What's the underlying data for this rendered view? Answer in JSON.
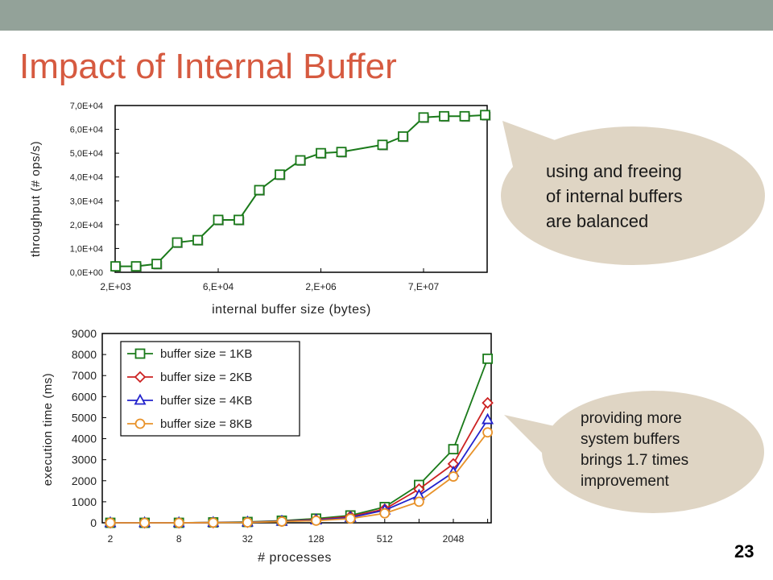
{
  "slide": {
    "title": "Impact of Internal Buffer",
    "page_number": "23",
    "colors": {
      "topbar": "#93a299",
      "title": "#d65a40",
      "bubble": "#dfd5c4"
    }
  },
  "callouts": {
    "top": [
      "using and freeing",
      "of internal buffers",
      "are balanced"
    ],
    "bottom": [
      "providing more",
      "system buffers",
      "brings 1.7 times",
      "improvement"
    ]
  },
  "chart_data": [
    {
      "type": "line",
      "xlabel": "internal buffer size (bytes)",
      "ylabel": "throughput (# ops/s)",
      "x_tick_labels": [
        "2,E+03",
        "6,E+04",
        "2,E+06",
        "7,E+07"
      ],
      "y_tick_labels": [
        "0,0E+00",
        "1,0E+04",
        "2,0E+04",
        "3,0E+04",
        "4,0E+04",
        "5,0E+04",
        "6,0E+04",
        "7,0E+04"
      ],
      "x_scale": "log2",
      "x": [
        2048,
        4096,
        8192,
        16384,
        32768,
        65536,
        131072,
        262144,
        524288,
        1048576,
        2097152,
        4194304,
        8388608,
        16777216,
        33554432,
        67108864,
        134217728,
        268435456,
        536870912
      ],
      "ylim": [
        0,
        70000
      ],
      "grid": false,
      "legend": "none",
      "series": [
        {
          "color": "#1a7a1a",
          "marker": "square",
          "values": [
            2500,
            2500,
            3500,
            12500,
            13500,
            22000,
            22000,
            34500,
            41000,
            47000,
            50000,
            50500,
            null,
            53500,
            57000,
            65000,
            65500,
            65500,
            66000
          ]
        }
      ]
    },
    {
      "type": "line",
      "xlabel": "# processes",
      "ylabel": "execution time (ms)",
      "x_tick_labels": [
        "2",
        "8",
        "32",
        "128",
        "512",
        "2048"
      ],
      "x_scale": "log2",
      "x": [
        2,
        4,
        8,
        16,
        32,
        64,
        128,
        256,
        512,
        1024,
        2048,
        4096
      ],
      "ylim": [
        0,
        9000
      ],
      "yticks": [
        0,
        1000,
        2000,
        3000,
        4000,
        5000,
        6000,
        7000,
        8000,
        9000
      ],
      "grid": false,
      "legend": "top-left",
      "series": [
        {
          "name": "buffer size = 1KB",
          "color": "#1a7a1a",
          "marker": "square",
          "values": [
            0,
            0,
            0,
            20,
            40,
            100,
            200,
            350,
            750,
            1800,
            3500,
            7800
          ]
        },
        {
          "name": "buffer size = 2KB",
          "color": "#cc2222",
          "marker": "diamond",
          "values": [
            0,
            0,
            0,
            10,
            30,
            80,
            150,
            300,
            650,
            1600,
            2800,
            5700
          ]
        },
        {
          "name": "buffer size = 4KB",
          "color": "#2222cc",
          "marker": "triangle",
          "values": [
            0,
            0,
            0,
            10,
            30,
            70,
            130,
            250,
            600,
            1300,
            2400,
            4900
          ]
        },
        {
          "name": "buffer size = 8KB",
          "color": "#e8922a",
          "marker": "circle",
          "values": [
            0,
            0,
            0,
            10,
            20,
            60,
            100,
            200,
            450,
            1000,
            2200,
            4300
          ]
        }
      ]
    }
  ]
}
